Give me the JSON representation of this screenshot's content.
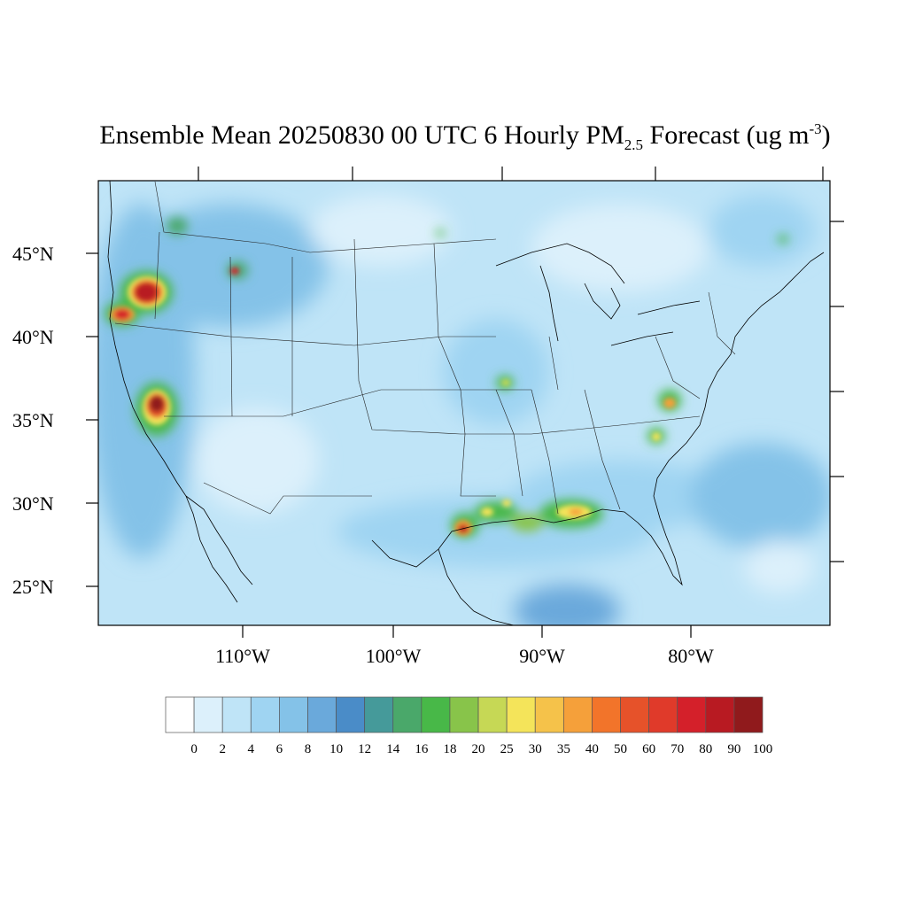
{
  "title": {
    "main": "Ensemble Mean 20250830 00 UTC 6 Hourly PM",
    "sub": "2.5",
    "unit_open": " Forecast (ug m",
    "sup": "-3",
    "unit_close": ")"
  },
  "lat_labels": [
    "45°N",
    "40°N",
    "35°N",
    "30°N",
    "25°N"
  ],
  "lon_labels": [
    "110°W",
    "100°W",
    "90°W",
    "80°W"
  ],
  "colorbar": {
    "tick_labels": [
      "0",
      "2",
      "4",
      "6",
      "8",
      "10",
      "12",
      "14",
      "16",
      "18",
      "20",
      "25",
      "30",
      "35",
      "40",
      "50",
      "60",
      "70",
      "80",
      "90",
      "100"
    ],
    "colors": [
      "#ffffff",
      "#dcf0fb",
      "#bfe4f7",
      "#9fd4f2",
      "#84c2e8",
      "#6aa9db",
      "#4a8cc8",
      "#459a9a",
      "#4aa86a",
      "#48b848",
      "#88c44a",
      "#c6d855",
      "#f4e45a",
      "#f5c24a",
      "#f5a03a",
      "#f2742a",
      "#e6522a",
      "#e03a2a",
      "#d4202a",
      "#b81a22",
      "#901a1c"
    ]
  }
}
